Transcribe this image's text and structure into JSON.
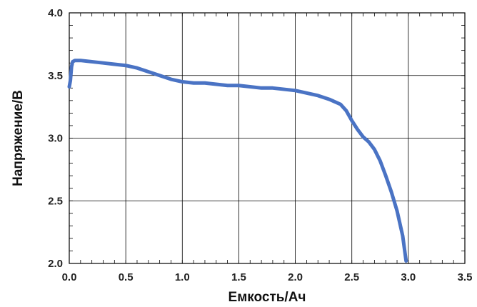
{
  "chart_data": {
    "type": "line",
    "title": "",
    "xlabel": "Емкость/Ач",
    "ylabel": "Напряжение/В",
    "xlim": [
      0,
      3.5
    ],
    "ylim": [
      2.0,
      4.0
    ],
    "x_ticks": [
      "0.0",
      "0.5",
      "1.0",
      "1.5",
      "2.0",
      "2.5",
      "3.0",
      "3.5"
    ],
    "y_ticks": [
      "2.0",
      "2.5",
      "3.0",
      "3.5",
      "4.0"
    ],
    "grid": true,
    "minor_ticks": true,
    "series": [
      {
        "color": "#4a73c4",
        "x": [
          0.0,
          0.01,
          0.02,
          0.03,
          0.05,
          0.1,
          0.2,
          0.3,
          0.4,
          0.5,
          0.6,
          0.7,
          0.8,
          0.9,
          1.0,
          1.1,
          1.2,
          1.3,
          1.4,
          1.5,
          1.6,
          1.7,
          1.8,
          1.9,
          2.0,
          2.1,
          2.2,
          2.3,
          2.4,
          2.45,
          2.5,
          2.55,
          2.6,
          2.65,
          2.7,
          2.75,
          2.8,
          2.85,
          2.9,
          2.95,
          2.98
        ],
        "y": [
          3.41,
          3.46,
          3.57,
          3.61,
          3.62,
          3.62,
          3.61,
          3.6,
          3.59,
          3.58,
          3.56,
          3.53,
          3.5,
          3.47,
          3.45,
          3.44,
          3.44,
          3.43,
          3.42,
          3.42,
          3.41,
          3.4,
          3.4,
          3.39,
          3.38,
          3.36,
          3.34,
          3.31,
          3.27,
          3.22,
          3.14,
          3.07,
          3.01,
          2.97,
          2.91,
          2.82,
          2.7,
          2.57,
          2.42,
          2.22,
          2.02
        ]
      }
    ]
  }
}
